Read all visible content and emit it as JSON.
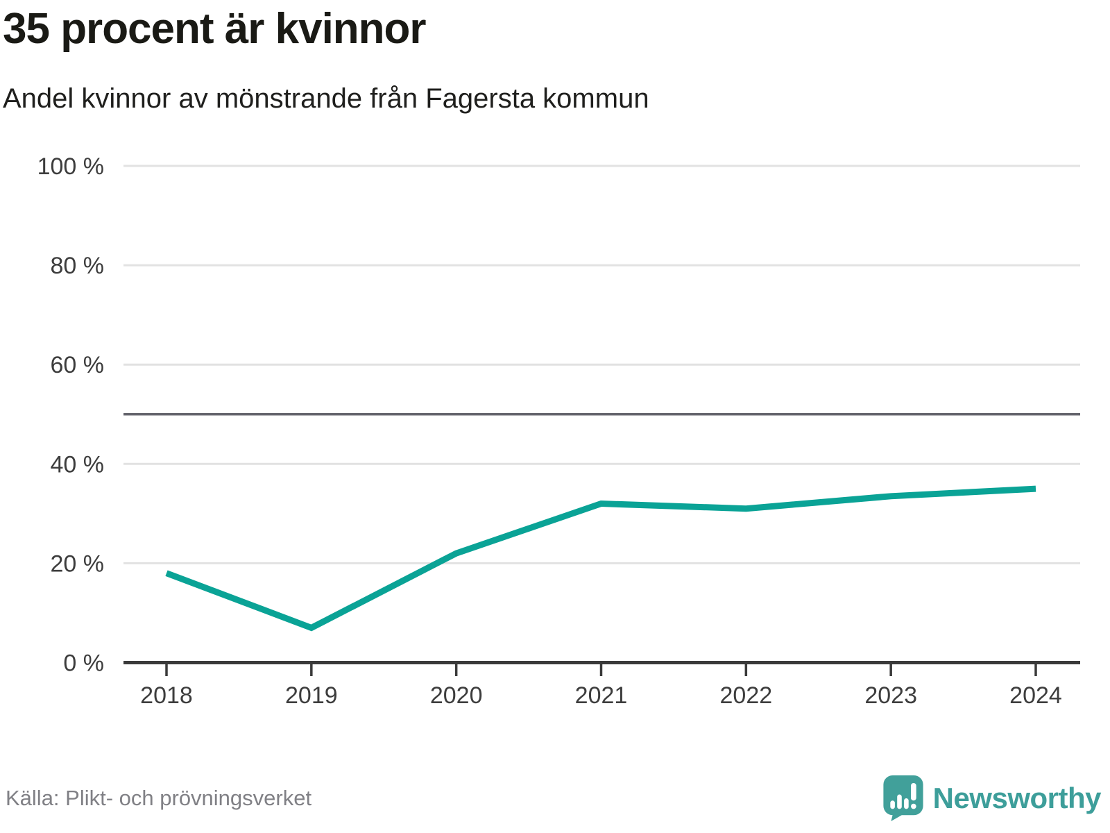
{
  "header": {
    "title": "35 procent är kvinnor",
    "subtitle": "Andel kvinnor av mönstrande från Fagersta kommun"
  },
  "chart_data": {
    "type": "line",
    "title": "35 procent är kvinnor",
    "subtitle": "Andel kvinnor av mönstrande från Fagersta kommun",
    "categories": [
      "2018",
      "2019",
      "2020",
      "2021",
      "2022",
      "2023",
      "2024"
    ],
    "series": [
      {
        "name": "Andel kvinnor av mönstrande",
        "values": [
          18,
          7,
          22,
          32,
          31,
          33.5,
          35
        ]
      }
    ],
    "unit": "%",
    "xlabel": "",
    "ylabel": "",
    "ylim": [
      0,
      100
    ],
    "yticks": [
      0,
      20,
      40,
      60,
      80,
      100
    ],
    "ytick_labels": [
      "0 %",
      "20 %",
      "40 %",
      "60 %",
      "80 %",
      "100 %"
    ],
    "reference_line": 50,
    "grid": "horizontal",
    "legend": "none",
    "colors": {
      "line": "#0aa396",
      "gridline": "#e2e2e2",
      "reference_line": "#65656d",
      "axis": "#3a3a3a",
      "tick_label": "#3d3d3d"
    }
  },
  "footer": {
    "source": "Källa: Plikt- och prövningsverket",
    "brand_name": "Newsworthy",
    "brand_color": "#3d9e9a"
  }
}
